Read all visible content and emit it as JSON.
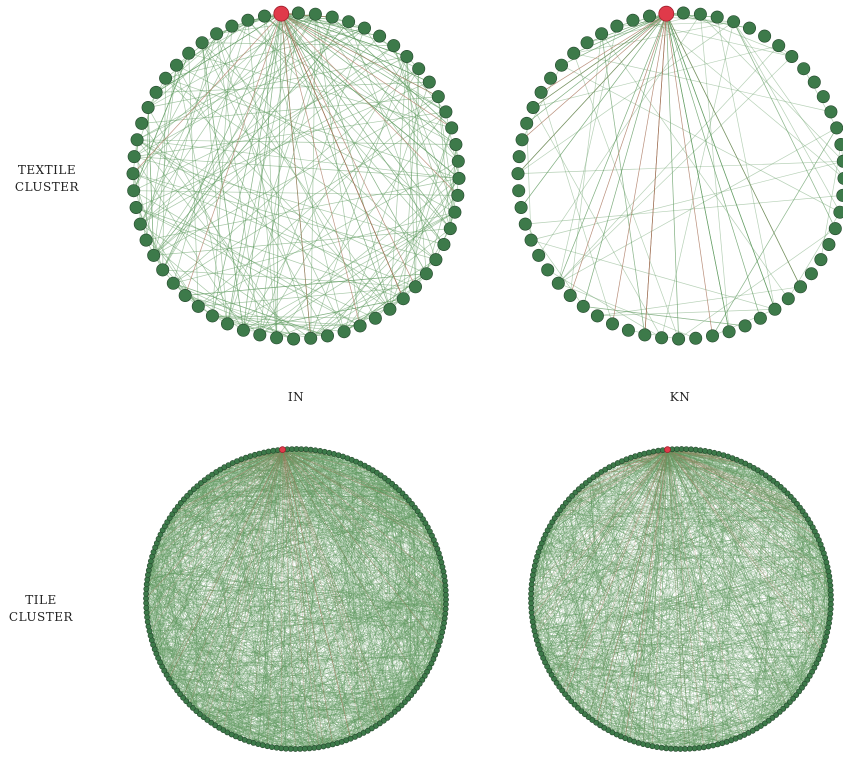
{
  "row_labels": {
    "textile": [
      "TEXTILE",
      "CLUSTER"
    ],
    "tile": [
      "TILE",
      "CLUSTER"
    ]
  },
  "column_labels": {
    "in": "IN",
    "kn": "KN"
  },
  "colors": {
    "background": "#ffffff",
    "node_fill": "#3d7a4a",
    "node_stroke": "#24472c",
    "hub_fill": "#e03a4a",
    "hub_stroke": "#a01e2c",
    "edge_hub": "#a8735a",
    "edge_other": "#5f9a5f",
    "text": "#222222"
  },
  "networks": [
    {
      "name": "textile-in",
      "layout": "circular",
      "nodes": 60,
      "hub_index": 0,
      "hub_edges": 35,
      "other_edges": 210
    },
    {
      "name": "textile-kn",
      "layout": "circular",
      "nodes": 60,
      "hub_index": 0,
      "hub_edges": 30,
      "other_edges": 55
    },
    {
      "name": "tile-in",
      "layout": "circular",
      "nodes": 200,
      "hub_index": 0,
      "hub_edges": 220,
      "other_edges": 1700
    },
    {
      "name": "tile-kn",
      "layout": "circular",
      "nodes": 200,
      "hub_index": 0,
      "hub_edges": 240,
      "other_edges": 1300
    }
  ]
}
